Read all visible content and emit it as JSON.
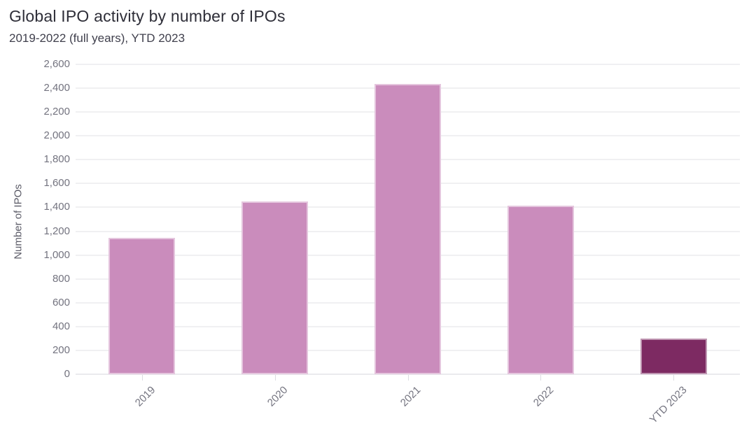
{
  "header": {
    "title": "Global IPO activity by number of IPOs",
    "subtitle": "2019-2022 (full years), YTD 2023"
  },
  "chart_data": {
    "type": "bar",
    "title": "Global IPO activity by number of IPOs",
    "subtitle": "2019-2022 (full years), YTD 2023",
    "categories": [
      "2019",
      "2020",
      "2021",
      "2022",
      "YTD 2023"
    ],
    "values": [
      1146,
      1452,
      2436,
      1415,
      299
    ],
    "xlabel": "",
    "ylabel": "Number of IPOs",
    "ylim": [
      0,
      2600
    ],
    "ytick_step": 200,
    "grid": "horizontal",
    "legend_position": "none",
    "bar_colors": [
      "#ca8cbc",
      "#ca8cbc",
      "#ca8cbc",
      "#ca8cbc",
      "#7d2a62"
    ],
    "colors": {
      "bar_default": "#ca8cbc",
      "bar_highlight": "#7d2a62",
      "title_text": "#2e2e38",
      "axis_text": "#73737f",
      "gridline": "#f0f0f2",
      "background": "#ffffff"
    }
  }
}
